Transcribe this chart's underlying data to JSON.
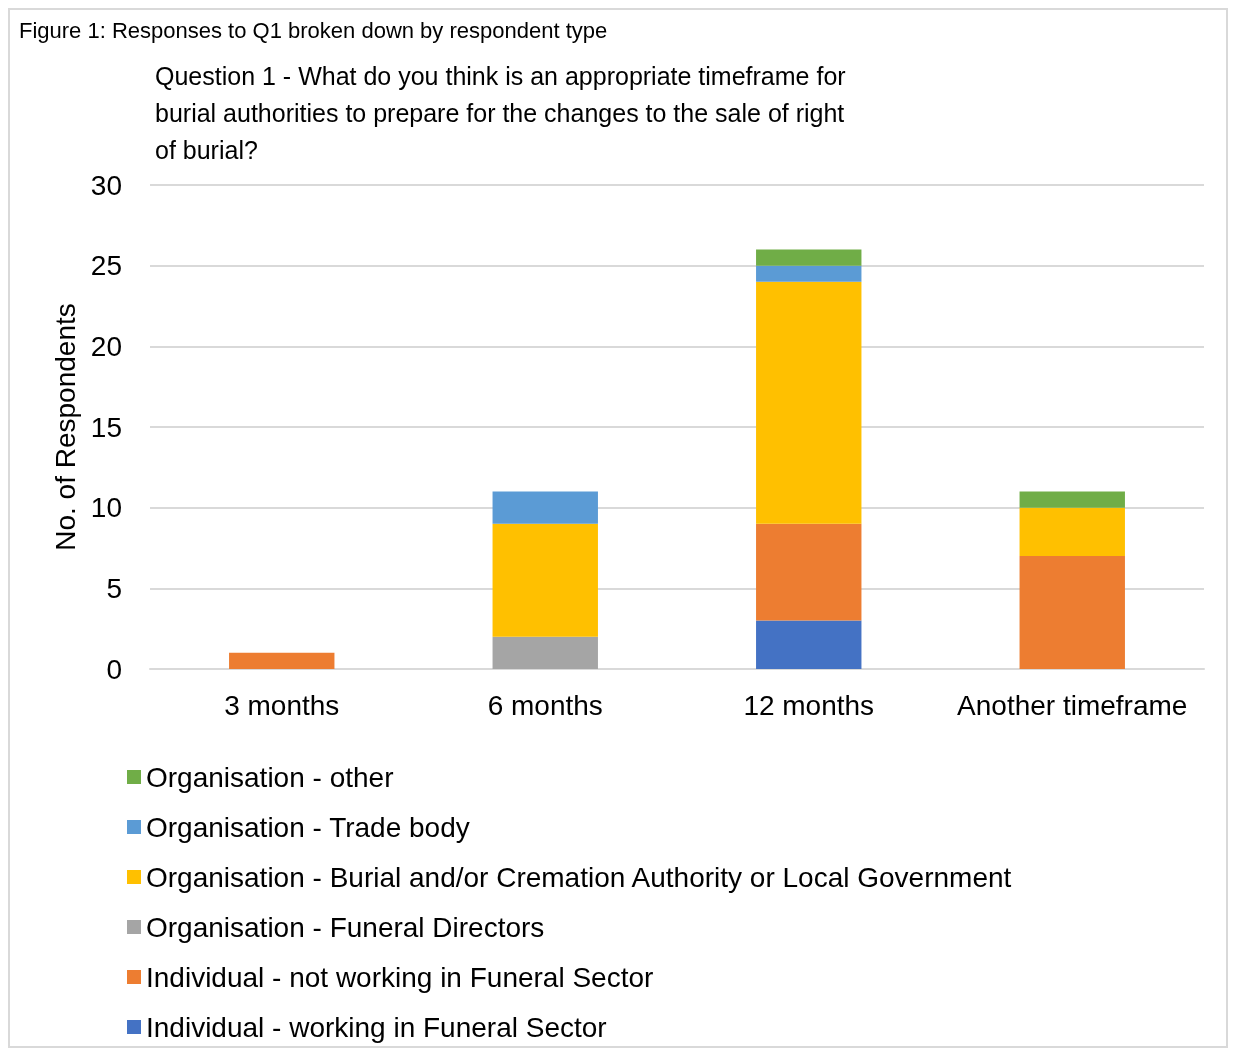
{
  "chart_data": {
    "type": "bar",
    "stacked": true,
    "title": "Question 1 - What do you think is an appropriate timeframe for burial authorities to prepare for the changes to the sale of right of burial?",
    "annotations": [
      "Figure 1: Responses to Q1 broken down by respondent type"
    ],
    "ylabel": "No. of Respondents",
    "categories": [
      "3 months",
      "6 months",
      "12 months",
      "Another timeframe"
    ],
    "ylim": [
      0,
      30
    ],
    "yticks": [
      0,
      5,
      10,
      15,
      20,
      25,
      30
    ],
    "grid": "y",
    "legend": "bottom",
    "series": [
      {
        "name": "Individual - working in Funeral Sector",
        "color": "#4472c4",
        "values": [
          0,
          0,
          3,
          0
        ]
      },
      {
        "name": "Individual - not working in Funeral Sector",
        "color": "#ed7d31",
        "values": [
          1,
          0,
          6,
          7
        ]
      },
      {
        "name": "Organisation - Funeral Directors",
        "color": "#a5a5a5",
        "values": [
          0,
          2,
          0,
          0
        ]
      },
      {
        "name": "Organisation - Burial and/or Cremation Authority or Local Government",
        "color": "#ffc000",
        "values": [
          0,
          7,
          15,
          3
        ]
      },
      {
        "name": "Organisation - Trade body",
        "color": "#5b9bd5",
        "values": [
          0,
          2,
          1,
          0
        ]
      },
      {
        "name": "Organisation - other",
        "color": "#70ad47",
        "values": [
          0,
          0,
          1,
          1
        ]
      }
    ]
  }
}
